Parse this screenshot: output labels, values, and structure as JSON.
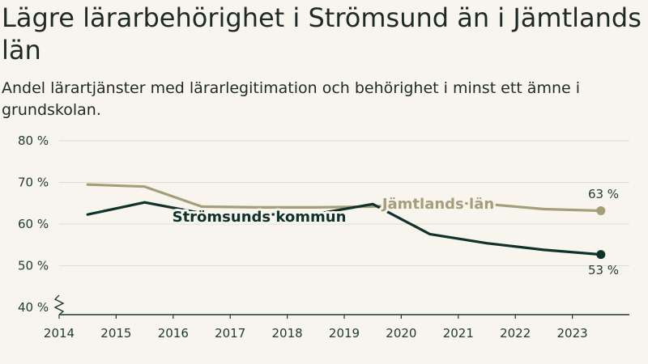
{
  "header": {
    "title": "Lägre lärarbehörighet i Strömsund än i Jämtlands län",
    "subtitle": "Andel lärartjänster med lärarlegitimation och behörighet i minst ett ämne i grundskolan."
  },
  "colors": {
    "background": "#f7f5ee",
    "stromsund": "#0f332b",
    "jamtland": "#a49f78",
    "grid": "#deddd3",
    "axis": "#1f3a32"
  },
  "chart_data": {
    "type": "line",
    "title": "Lägre lärarbehörighet i Strömsund än i Jämtlands län",
    "subtitle": "Andel lärartjänster med lärarlegitimation och behörighet i minst ett ämne i grundskolan.",
    "xlabel": "",
    "ylabel": "",
    "x_ticks": [
      "2014",
      "2015",
      "2016",
      "2017",
      "2018",
      "2019",
      "2020",
      "2021",
      "2022",
      "2023"
    ],
    "y_ticks": [
      "40 %",
      "50 %",
      "60 %",
      "70 %",
      "80 %"
    ],
    "ylim": [
      40,
      80
    ],
    "y_axis_break": true,
    "grid": true,
    "series": [
      {
        "name": "Jämtlands län",
        "color": "#a49f78",
        "x": [
          2014.5,
          2015.5,
          2016.5,
          2017.5,
          2018.5,
          2019.5,
          2020.5,
          2021.5,
          2022.5,
          2023.5
        ],
        "values": [
          69.5,
          69.0,
          64.2,
          64.0,
          64.0,
          64.2,
          65.2,
          64.8,
          63.6,
          63.2
        ],
        "end_label": "63 %"
      },
      {
        "name": "Strömsunds kommun",
        "color": "#0f332b",
        "x": [
          2014.5,
          2015.5,
          2016.5,
          2017.5,
          2018.5,
          2019.5,
          2020.5,
          2021.5,
          2022.5,
          2023.5
        ],
        "values": [
          62.3,
          65.2,
          62.6,
          62.3,
          62.4,
          64.8,
          57.6,
          55.4,
          53.8,
          52.7
        ],
        "end_label": "53 %"
      }
    ]
  }
}
